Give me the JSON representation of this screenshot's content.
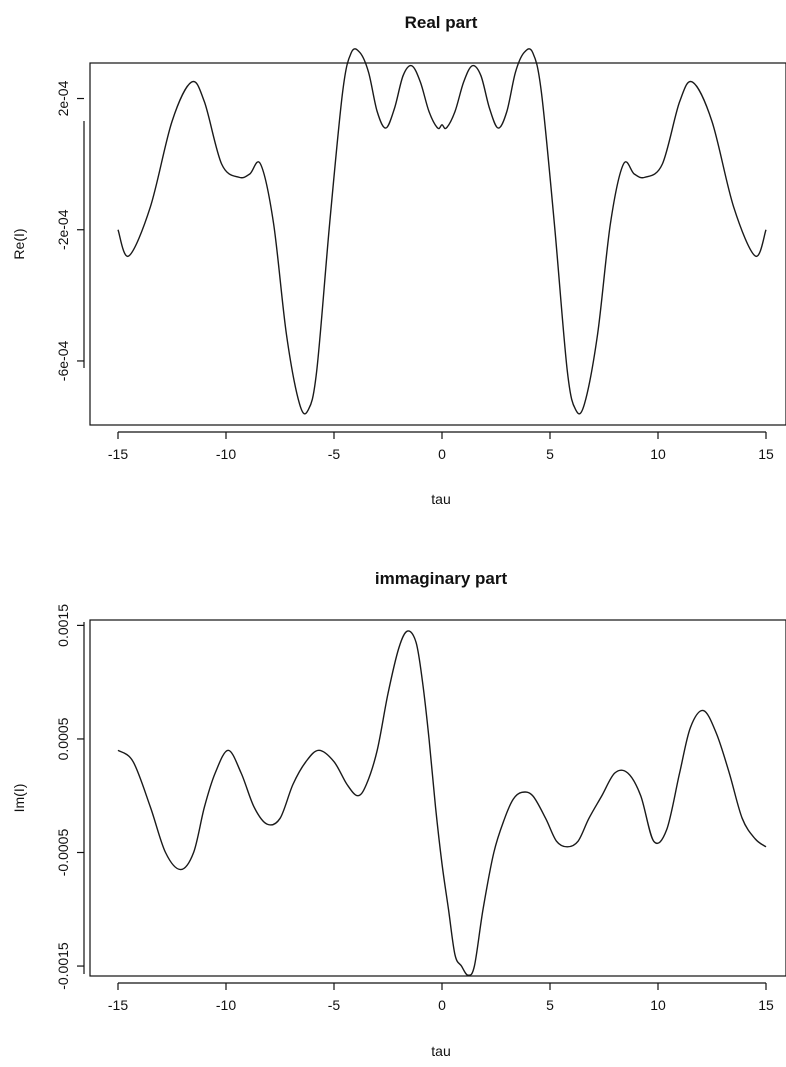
{
  "chart_data": [
    {
      "type": "line",
      "title": "Real part",
      "xlabel": "tau",
      "ylabel": "Re(I)",
      "xlim": [
        -15,
        15
      ],
      "ylim": [
        -0.00078,
        0.00029
      ],
      "x_ticks": [
        -15,
        -10,
        -5,
        0,
        5,
        10,
        15
      ],
      "x_tick_labels": [
        "-15",
        "-10",
        "-5",
        "0",
        "5",
        "10",
        "15"
      ],
      "y_ticks": [
        0.0002,
        -0.0002,
        -0.0006
      ],
      "y_tick_labels": [
        "2e-04",
        "-2e-04",
        "-6e-04"
      ],
      "grid": false,
      "series": [
        {
          "x": [
            -15,
            -14.5,
            -13.5,
            -12.5,
            -11.6,
            -11,
            -10.2,
            -9.4,
            -8.9,
            -8.4,
            -7.8,
            -7.2,
            -6.6,
            -6.2,
            -5.8,
            -5.2,
            -4.6,
            -4.2,
            -3.8,
            -3.4,
            -3,
            -2.6,
            -2.2,
            -1.8,
            -1.4,
            -1,
            -0.6,
            -0.2,
            0,
            0.2,
            0.6,
            1,
            1.4,
            1.8,
            2.2,
            2.6,
            3,
            3.4,
            3.8,
            4.2,
            4.6,
            5.2,
            5.8,
            6.2,
            6.6,
            7.2,
            7.8,
            8.4,
            8.9,
            9.4,
            10.2,
            11,
            11.6,
            12.5,
            13.5,
            14.5,
            15
          ],
          "y": [
            -0.0002,
            -0.00028,
            -0.00013,
            0.00013,
            0.00025,
            0.00019,
            -0.0,
            -4e-05,
            -3e-05,
            0.0,
            -0.00018,
            -0.00052,
            -0.00073,
            -0.00075,
            -0.00063,
            -0.00018,
            0.00022,
            0.00034,
            0.00034,
            0.00028,
            0.00016,
            0.00011,
            0.00017,
            0.00027,
            0.0003,
            0.00025,
            0.00016,
            0.00011,
            0.00012,
            0.00011,
            0.00016,
            0.00025,
            0.0003,
            0.00027,
            0.00017,
            0.00011,
            0.00016,
            0.00028,
            0.00034,
            0.00034,
            0.00022,
            -0.00018,
            -0.00063,
            -0.00075,
            -0.00073,
            -0.00052,
            -0.00018,
            0.0,
            -3e-05,
            -4e-05,
            -0.0,
            0.00019,
            0.00025,
            0.00013,
            -0.00013,
            -0.00028,
            -0.0002
          ]
        }
      ]
    },
    {
      "type": "line",
      "title": "immaginary part",
      "xlabel": "tau",
      "ylabel": "Im(I)",
      "xlim": [
        -15,
        15
      ],
      "ylim": [
        -0.00157,
        0.00153
      ],
      "x_ticks": [
        -15,
        -10,
        -5,
        0,
        5,
        10,
        15
      ],
      "x_tick_labels": [
        "-15",
        "-10",
        "-5",
        "0",
        "5",
        "10",
        "15"
      ],
      "y_ticks": [
        0.0015,
        0.0005,
        -0.0005,
        -0.0015
      ],
      "y_tick_labels": [
        "0.0015",
        "0.0005",
        "-0.0005",
        "-0.0015"
      ],
      "grid": false,
      "series": [
        {
          "x": [
            -15,
            -14.3,
            -13.5,
            -12.8,
            -12.1,
            -11.5,
            -11,
            -10.5,
            -9.9,
            -9.3,
            -8.7,
            -8.1,
            -7.5,
            -6.9,
            -6.3,
            -5.7,
            -5,
            -4.4,
            -3.9,
            -3.5,
            -3,
            -2.5,
            -2,
            -1.6,
            -1.2,
            -0.9,
            -0.6,
            -0.3,
            0,
            0.3,
            0.6,
            0.9,
            1.2,
            1.5,
            1.9,
            2.4,
            2.9,
            3.3,
            3.7,
            4.2,
            4.8,
            5.3,
            5.8,
            6.3,
            6.8,
            7.4,
            8,
            8.6,
            9.2,
            9.8,
            10.4,
            11,
            11.5,
            12.1,
            12.7,
            13.3,
            13.9,
            14.5,
            15
          ],
          "y": [
            0.0004,
            0.0003,
            -0.0001,
            -0.0005,
            -0.00065,
            -0.0005,
            -0.0001,
            0.0002,
            0.0004,
            0.0002,
            -0.0001,
            -0.00025,
            -0.0002,
            0.0001,
            0.0003,
            0.0004,
            0.0003,
            0.0001,
            0.0,
            0.0001,
            0.0004,
            0.0009,
            0.0013,
            0.00145,
            0.00135,
            0.001,
            0.0005,
            -0.0001,
            -0.0006,
            -0.001,
            -0.0014,
            -0.0015,
            -0.00158,
            -0.0015,
            -0.001,
            -0.0005,
            -0.0002,
            -3e-05,
            3e-05,
            0.0,
            -0.0002,
            -0.0004,
            -0.00045,
            -0.0004,
            -0.0002,
            0.0,
            0.0002,
            0.0002,
            0.0,
            -0.0004,
            -0.0003,
            0.0002,
            0.0006,
            0.00075,
            0.00055,
            0.0002,
            -0.0002,
            -0.00038,
            -0.00045
          ]
        }
      ]
    }
  ]
}
